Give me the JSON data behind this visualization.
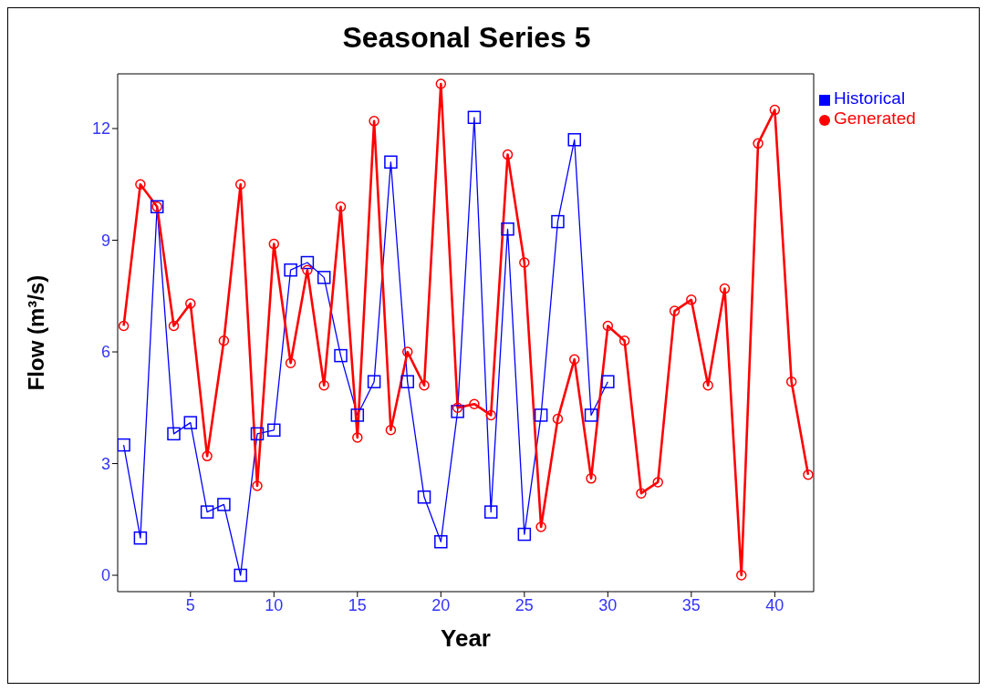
{
  "chart_data": {
    "type": "line",
    "title": "Seasonal Series 5",
    "xlabel": "Year",
    "ylabel": "Flow (m³/s)",
    "xlim": [
      0.64,
      42.33
    ],
    "xticks": [
      5,
      10,
      15,
      20,
      25,
      30,
      35,
      40
    ],
    "ylim": [
      -0.44,
      13.47
    ],
    "yticks": [
      0,
      3,
      6,
      9,
      12
    ],
    "legend": "top right",
    "series": [
      {
        "name": "Historical",
        "color": "#0000ff",
        "marker": "square",
        "x": [
          1,
          2,
          3,
          4,
          5,
          6,
          7,
          8,
          9,
          10,
          11,
          12,
          13,
          14,
          15,
          16,
          17,
          18,
          19,
          20,
          21,
          22,
          23,
          24,
          25,
          26,
          27,
          28,
          29,
          30
        ],
        "values": [
          3.5,
          1.0,
          9.9,
          3.8,
          4.1,
          1.7,
          1.9,
          0,
          3.8,
          3.9,
          8.2,
          8.4,
          8.0,
          5.9,
          4.3,
          5.2,
          11.1,
          5.2,
          2.1,
          0.9,
          4.4,
          12.3,
          1.7,
          9.3,
          1.1,
          4.3,
          9.5,
          11.7,
          4.3,
          5.2
        ]
      },
      {
        "name": "Generated",
        "color": "#ff0000",
        "marker": "circle",
        "x": [
          1,
          2,
          3,
          4,
          5,
          6,
          7,
          8,
          9,
          10,
          11,
          12,
          13,
          14,
          15,
          16,
          17,
          18,
          19,
          20,
          21,
          22,
          23,
          24,
          25,
          26,
          27,
          28,
          29,
          30,
          31,
          32,
          33,
          34,
          35,
          36,
          37,
          38,
          39,
          40,
          41,
          42
        ],
        "values": [
          6.7,
          10.5,
          9.9,
          6.7,
          7.3,
          3.2,
          6.3,
          10.5,
          2.4,
          8.9,
          5.7,
          8.2,
          5.1,
          9.9,
          3.7,
          12.2,
          3.9,
          6.0,
          5.1,
          13.2,
          4.5,
          4.6,
          4.3,
          11.3,
          8.4,
          1.3,
          4.2,
          5.8,
          2.6,
          6.7,
          6.3,
          2.2,
          2.5,
          7.1,
          7.4,
          5.1,
          7.7,
          0.0,
          11.6,
          12.5,
          5.2,
          2.7
        ]
      }
    ]
  }
}
